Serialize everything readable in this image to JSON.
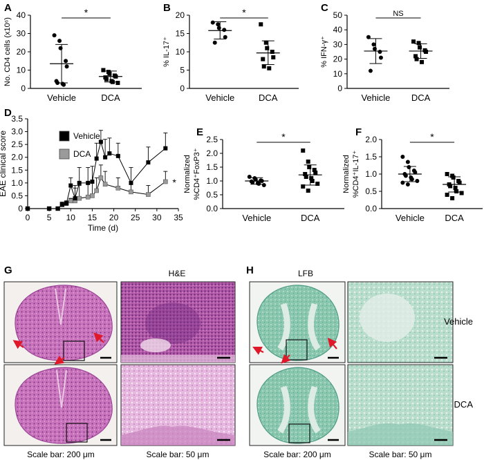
{
  "panels": {
    "A": "A",
    "B": "B",
    "C": "C",
    "D": "D",
    "E": "E",
    "F": "F",
    "G": "G",
    "H": "H"
  },
  "chart_data": [
    {
      "id": "A",
      "type": "scatter",
      "ylabel": "No. CD4 cells (x10⁶)",
      "ylim": [
        0,
        40
      ],
      "yticks": [
        0,
        10,
        20,
        30,
        40
      ],
      "categories": [
        "Vehicle",
        "DCA"
      ],
      "significance": "*",
      "series": [
        {
          "marker": "circle",
          "mean": 13.5,
          "sd_low": 3.0,
          "sd_high": 24.0,
          "values": [
            29,
            26,
            22,
            15,
            12,
            4,
            3,
            2.5,
            2
          ]
        },
        {
          "marker": "square",
          "mean": 6.5,
          "sd_low": 3.5,
          "sd_high": 9.5,
          "values": [
            10,
            9,
            8,
            7,
            6.5,
            6,
            5,
            4,
            3.5,
            3
          ]
        }
      ]
    },
    {
      "id": "B",
      "type": "scatter",
      "ylabel": "% IL-17⁺",
      "ylim": [
        0,
        20
      ],
      "yticks": [
        0,
        5,
        10,
        15,
        20
      ],
      "categories": [
        "Vehicle",
        "DCA"
      ],
      "significance": "*",
      "series": [
        {
          "marker": "circle",
          "mean": 15.8,
          "sd_low": 13.5,
          "sd_high": 18.2,
          "values": [
            18,
            17.5,
            16.5,
            16,
            14,
            12.5
          ]
        },
        {
          "marker": "square",
          "mean": 9.7,
          "sd_low": 6.5,
          "sd_high": 13.0,
          "values": [
            17.5,
            12.5,
            11,
            10,
            8.5,
            8,
            6,
            5.5
          ]
        }
      ]
    },
    {
      "id": "C",
      "type": "scatter",
      "ylabel": "% IFN-γ⁺",
      "ylim": [
        0,
        50
      ],
      "yticks": [
        0,
        10,
        20,
        30,
        40,
        50
      ],
      "categories": [
        "Vehicle",
        "DCA"
      ],
      "significance": "NS",
      "series": [
        {
          "marker": "circle",
          "mean": 25.5,
          "sd_low": 17.0,
          "sd_high": 34.0,
          "values": [
            35,
            30,
            27,
            25,
            21,
            12
          ]
        },
        {
          "marker": "square",
          "mean": 25.5,
          "sd_low": 20.5,
          "sd_high": 30.5,
          "values": [
            32,
            31,
            28,
            26,
            25,
            22,
            20,
            18
          ]
        }
      ]
    },
    {
      "id": "D",
      "type": "line",
      "xlabel": "Time (d)",
      "ylabel": "EAE clinical score",
      "xlim": [
        0,
        35
      ],
      "ylim": [
        0,
        3.5
      ],
      "xticks": [
        0,
        5,
        10,
        15,
        20,
        25,
        30,
        35
      ],
      "yticks": [
        0,
        0.5,
        1.0,
        1.5,
        2.0,
        2.5,
        3.0,
        3.5
      ],
      "yticklabels": [
        "0",
        "0.5",
        "1.0",
        "1.5",
        "2.0",
        "2.5",
        "3.0",
        "3.5"
      ],
      "significance": "*",
      "series": [
        {
          "name": "Vehicle",
          "color": "#000000",
          "x": [
            0,
            5,
            7,
            8,
            9,
            10,
            11,
            12,
            14,
            15,
            16,
            17,
            18,
            19,
            21,
            24,
            28,
            32
          ],
          "y": [
            0,
            0,
            0,
            0.15,
            0.2,
            0.9,
            0.4,
            1.0,
            1.0,
            1.05,
            1.95,
            2.6,
            2.0,
            2.15,
            2.05,
            1.0,
            1.8,
            2.35
          ],
          "err": [
            0,
            0,
            0,
            0.1,
            0.1,
            0.3,
            0.5,
            0.6,
            0.6,
            0.6,
            0.6,
            0.45,
            0.7,
            0.6,
            0.5,
            0.6,
            0.6,
            0.6
          ]
        },
        {
          "name": "DCA",
          "color": "#9a9a9a",
          "x": [
            0,
            5,
            7,
            8,
            9,
            10,
            11,
            12,
            14,
            15,
            16,
            17,
            18,
            21,
            24,
            28,
            32
          ],
          "y": [
            0,
            0,
            0,
            0.15,
            0.2,
            0.3,
            0.3,
            0.4,
            0.45,
            0.5,
            0.7,
            1.2,
            0.95,
            0.8,
            0.65,
            0.55,
            1.05
          ],
          "err": [
            0,
            0,
            0,
            0.1,
            0.1,
            0.1,
            0.5,
            0.5,
            0.5,
            0.5,
            0.5,
            0.5,
            0.5,
            0.4,
            0.4,
            0.35,
            0.4
          ]
        }
      ]
    },
    {
      "id": "E",
      "type": "scatter",
      "ylabel_lines": [
        "Normalized",
        "%CD4⁺FoxP3⁺"
      ],
      "ylim": [
        0,
        2.5
      ],
      "yticks": [
        0,
        0.5,
        1.0,
        1.5,
        2.0,
        2.5
      ],
      "yticklabels": [
        "0.0",
        "0.5",
        "1.0",
        "1.5",
        "2.0",
        "2.5"
      ],
      "categories": [
        "Vehicle",
        "DCA"
      ],
      "significance": "*",
      "series": [
        {
          "marker": "circle",
          "mean": 1.0,
          "sd_low": 0.88,
          "sd_high": 1.12,
          "values": [
            1.15,
            1.1,
            1.05,
            1.02,
            1.0,
            0.98,
            0.95,
            0.92,
            0.9,
            0.85
          ]
        },
        {
          "marker": "square",
          "mean": 1.22,
          "sd_low": 0.85,
          "sd_high": 1.58,
          "values": [
            2.1,
            1.7,
            1.5,
            1.4,
            1.3,
            1.25,
            1.15,
            1.1,
            1.0,
            0.9,
            0.8,
            0.65
          ]
        }
      ]
    },
    {
      "id": "F",
      "type": "scatter",
      "ylabel_lines": [
        "Normalized",
        "%CD4⁺IL-17⁺"
      ],
      "ylim": [
        0,
        2.0
      ],
      "yticks": [
        0,
        0.5,
        1.0,
        1.5,
        2.0
      ],
      "yticklabels": [
        "0.0",
        "0.5",
        "1.0",
        "1.5",
        "2.0"
      ],
      "categories": [
        "Vehicle",
        "DCA"
      ],
      "significance": "*",
      "series": [
        {
          "marker": "circle",
          "mean": 1.0,
          "sd_low": 0.78,
          "sd_high": 1.22,
          "values": [
            1.5,
            1.35,
            1.2,
            1.1,
            1.05,
            1.0,
            0.95,
            0.9,
            0.85,
            0.8,
            0.75,
            0.7
          ]
        },
        {
          "marker": "square",
          "mean": 0.7,
          "sd_low": 0.48,
          "sd_high": 0.92,
          "values": [
            1.0,
            0.95,
            0.9,
            0.8,
            0.75,
            0.7,
            0.65,
            0.6,
            0.5,
            0.45,
            0.4,
            0.3
          ]
        }
      ]
    }
  ],
  "histology": {
    "G": {
      "stain": "H&E",
      "rows": [
        "",
        ""
      ]
    },
    "H": {
      "stain": "LFB",
      "rows": [
        "Vehicle",
        "DCA"
      ]
    },
    "scale_large": "Scale bar: 200 μm",
    "scale_small": "Scale bar: 50 μm",
    "colors": {
      "he_tissue": "#c06fb6",
      "he_dense": "#8a3e8e",
      "lfb_tissue": "#7cc1a7",
      "lfb_white": "#e8efe6",
      "arrow": "#e0192a"
    }
  }
}
